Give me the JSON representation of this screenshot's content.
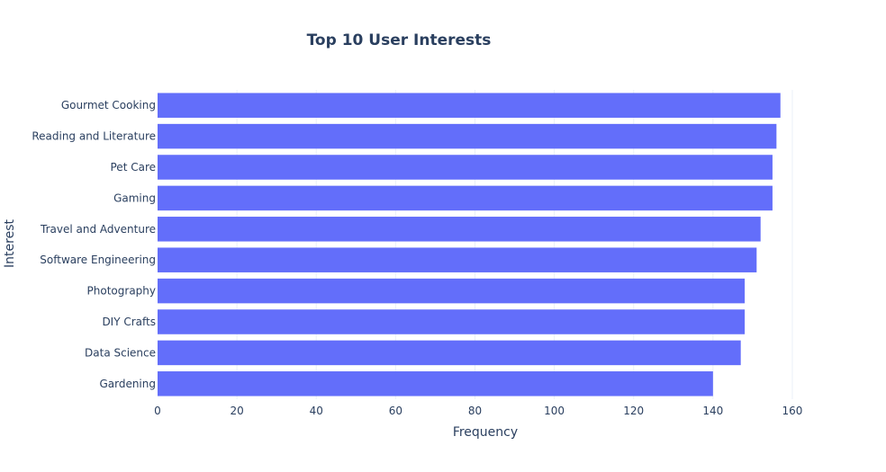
{
  "chart_data": {
    "type": "bar",
    "orientation": "horizontal",
    "title": "Top 10 User Interests",
    "xlabel": "Frequency",
    "ylabel": "Interest",
    "categories": [
      "Gourmet Cooking",
      "Reading and Literature",
      "Pet Care",
      "Gaming",
      "Travel and Adventure",
      "Software Engineering",
      "Photography",
      "DIY Crafts",
      "Data Science",
      "Gardening"
    ],
    "values": [
      157,
      156,
      155,
      155,
      152,
      151,
      148,
      148,
      147,
      140
    ],
    "xlim": [
      0,
      165
    ],
    "xticks": [
      0,
      20,
      40,
      60,
      80,
      100,
      120,
      140,
      160
    ],
    "grid": true,
    "bar_color": "#636efa"
  }
}
